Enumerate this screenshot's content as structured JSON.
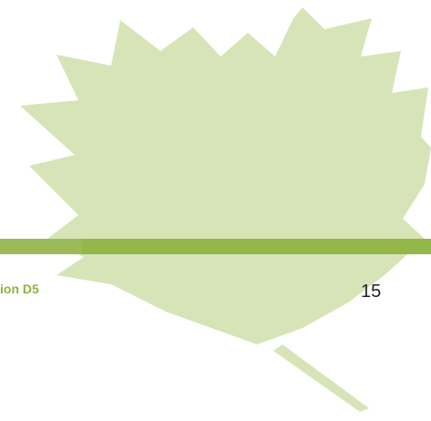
{
  "footer": {
    "section": "ion D5",
    "page_number": "15"
  }
}
